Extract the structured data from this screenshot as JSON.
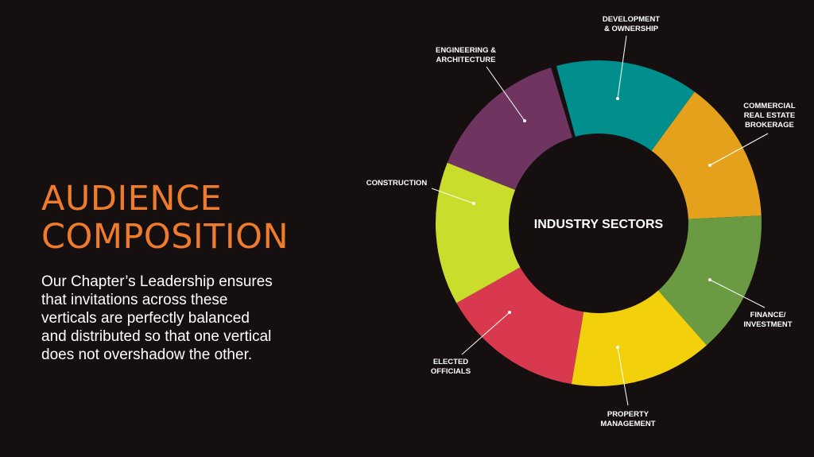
{
  "headline": {
    "line1": "AUDIENCE",
    "line2": "COMPOSITION"
  },
  "body_text": {
    "lines": [
      "Our Chapter’s Leadership ensures",
      "that invitations across these",
      "verticals are perfectly balanced",
      "and distributed so that one vertical",
      "does not overshadow the other."
    ]
  },
  "chart_data": {
    "type": "pie",
    "center_label": "INDUSTRY SECTORS",
    "slices": [
      {
        "label": [
          "DEVELOPMENT",
          "& OWNERSHIP"
        ],
        "value": 12.5,
        "color": "#008f8c"
      },
      {
        "label": [
          "COMMERCIAL",
          "REAL ESTATE",
          "BROKERAGE"
        ],
        "value": 12.5,
        "color": "#e5a11c"
      },
      {
        "label": [
          "FINANCE/",
          "INVESTMENT"
        ],
        "value": 12.5,
        "color": "#6a9a42"
      },
      {
        "label": [
          "PROPERTY",
          "MANAGEMENT"
        ],
        "value": 12.5,
        "color": "#f3d00c"
      },
      {
        "label": [
          "ELECTED",
          "OFFICIALS"
        ],
        "value": 12.5,
        "color": "#d8394e"
      },
      {
        "label": [
          "CONSTRUCTION"
        ],
        "value": 12.5,
        "color": "#cadc2c"
      },
      {
        "label": [
          "ENGINEERING &",
          "ARCHITECTURE"
        ],
        "value": 12.5,
        "color": "#6f3560"
      }
    ]
  },
  "colors": {
    "background": "#150f0f",
    "headline": "#ef7c2d",
    "body_text": "#ffffff"
  }
}
